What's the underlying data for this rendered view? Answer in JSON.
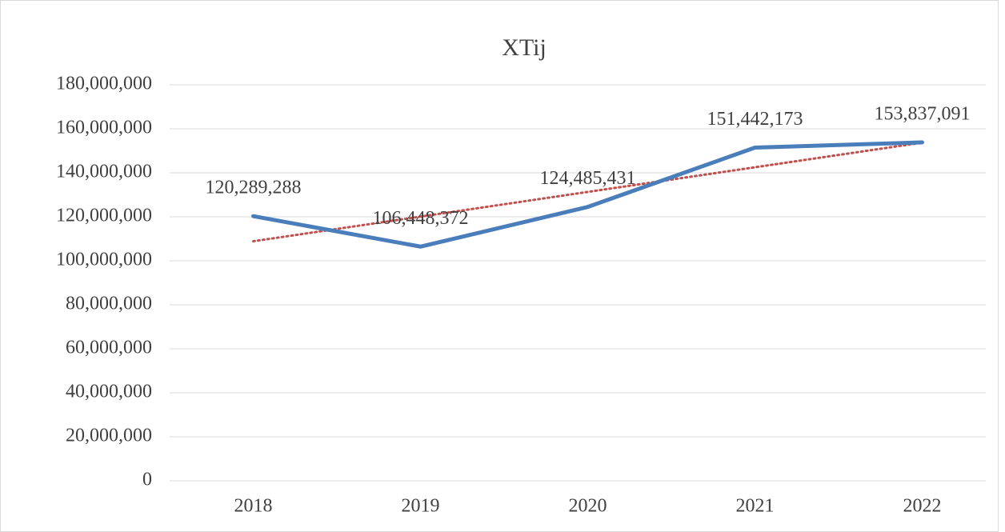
{
  "chart_data": {
    "type": "line",
    "title": "XTij",
    "categories": [
      "2018",
      "2019",
      "2020",
      "2021",
      "2022"
    ],
    "series": [
      {
        "color": "#4a7ebb",
        "values": [
          120289288,
          106448372,
          124485431,
          151442173,
          153837091
        ],
        "value_labels": [
          "120,289,288",
          "106,448,372",
          "124,485,431",
          "151,442,173",
          "153,837,091"
        ]
      }
    ],
    "trendline": {
      "type": "linear",
      "color": "#c0504d"
    },
    "ylim": [
      0,
      180000000
    ],
    "yticks": [
      0,
      {
        "value": 20000000,
        "label": "20,000,000"
      },
      {
        "value": 40000000,
        "label": "40,000,000"
      },
      {
        "value": 60000000,
        "label": "60,000,000"
      },
      {
        "value": 80000000,
        "label": "80,000,000"
      },
      {
        "value": 100000000,
        "label": "100,000,000"
      },
      {
        "value": 120000000,
        "label": "120,000,000"
      },
      {
        "value": 140000000,
        "label": "140,000,000"
      },
      {
        "value": 160000000,
        "label": "160,000,000"
      },
      {
        "value": 180000000,
        "label": "180,000,000"
      }
    ],
    "grid": true
  }
}
